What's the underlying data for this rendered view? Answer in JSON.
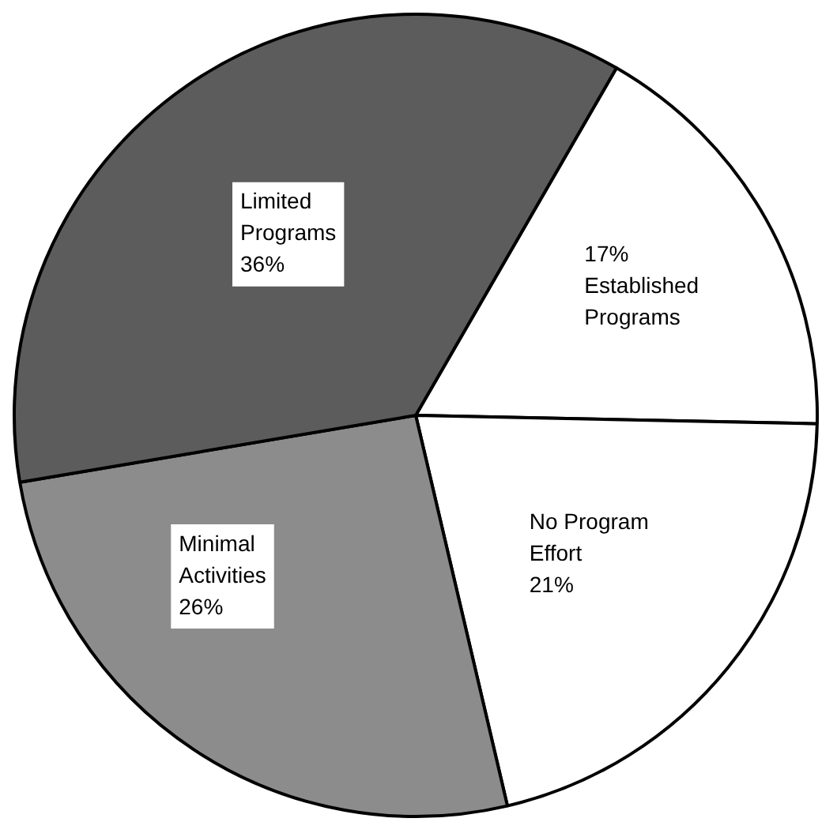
{
  "chart_data": {
    "type": "pie",
    "categories": [
      "Established Programs",
      "No Program Effort",
      "Minimal Activities",
      "Limited Programs"
    ],
    "values": [
      17,
      21,
      26,
      36
    ],
    "colors": [
      "#ffffff",
      "#ffffff",
      "#8c8c8c",
      "#5c5c5c"
    ],
    "value_labels": [
      "17%",
      "21%",
      "26%",
      "36%"
    ]
  }
}
